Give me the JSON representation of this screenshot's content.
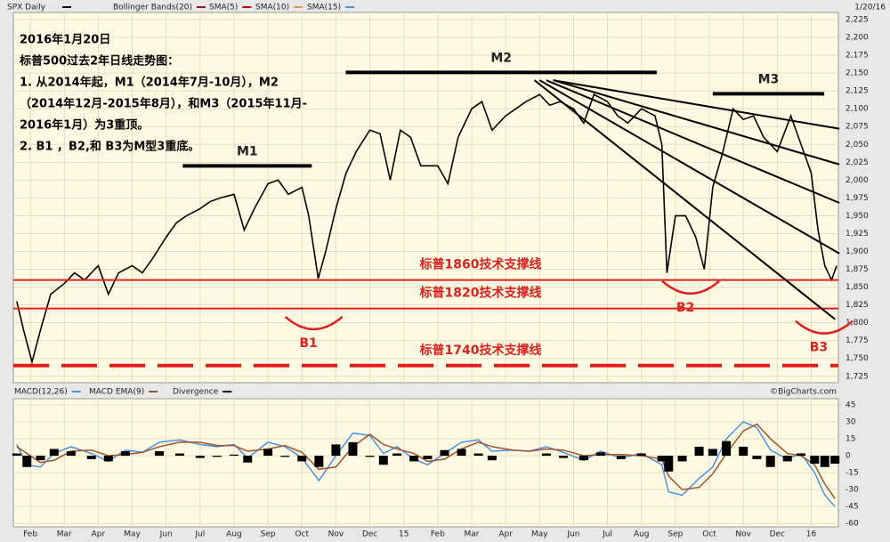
{
  "chart_data": [
    {
      "type": "line",
      "title": "SPX Daily",
      "date": "1/20/16",
      "legend": [
        {
          "name": "Bollinger Bands(20)",
          "color": "#8b1a1a"
        },
        {
          "name": "SMA(5)",
          "color": "#c00000"
        },
        {
          "name": "SMA(10)",
          "color": "#e0a040"
        },
        {
          "name": "SMA(15)",
          "color": "#4a90e2"
        }
      ],
      "x": [
        -0.4,
        -0.2,
        0.05,
        0.3,
        0.6,
        1.0,
        1.3,
        1.6,
        2.0,
        2.3,
        2.6,
        3.0,
        3.3,
        3.6,
        4.0,
        4.3,
        4.6,
        5.0,
        5.3,
        5.6,
        6.0,
        6.3,
        6.6,
        7.0,
        7.3,
        7.6,
        8.0,
        8.2,
        8.48,
        8.7,
        9.0,
        9.3,
        9.6,
        10.0,
        10.3,
        10.6,
        10.9,
        11.2,
        11.5,
        12.0,
        12.3,
        12.6,
        13.0,
        13.3,
        13.6,
        14.0,
        14.3,
        14.6,
        15.0,
        15.3,
        15.6,
        16.0,
        16.3,
        16.6,
        17.0,
        17.3,
        17.6,
        18.0,
        18.4,
        18.6,
        18.75,
        19.0,
        19.3,
        19.6,
        19.85,
        20.1,
        20.4,
        20.7,
        21.0,
        21.3,
        21.6,
        22.0,
        22.4,
        22.7,
        23.0,
        23.2,
        23.4,
        23.6,
        23.75
      ],
      "series": [
        {
          "name": "SPX Daily",
          "color": "#000000",
          "values": [
            1830,
            1790,
            1745,
            1790,
            1840,
            1855,
            1870,
            1860,
            1880,
            1840,
            1870,
            1880,
            1870,
            1890,
            1920,
            1940,
            1950,
            1960,
            1970,
            1975,
            1980,
            1930,
            1960,
            1995,
            2000,
            1980,
            1990,
            1950,
            1862,
            1900,
            1960,
            2010,
            2040,
            2070,
            2065,
            2000,
            2070,
            2060,
            2020,
            2020,
            1995,
            2060,
            2100,
            2110,
            2070,
            2090,
            2100,
            2110,
            2120,
            2105,
            2110,
            2100,
            2080,
            2120,
            2110,
            2090,
            2080,
            2100,
            2090,
            2050,
            1870,
            1950,
            1950,
            1920,
            1875,
            1990,
            2040,
            2100,
            2085,
            2090,
            2060,
            2040,
            2090,
            2050,
            2010,
            1930,
            1880,
            1860,
            1880
          ]
        }
      ],
      "xlim": [
        -0.5,
        23.8
      ],
      "ylim": [
        1716,
        2235
      ],
      "yticks": [
        {
          "value": 1725,
          "label": "1,725"
        },
        {
          "value": 1750,
          "label": "1,750"
        },
        {
          "value": 1775,
          "label": "1,775"
        },
        {
          "value": 1800,
          "label": "1,800"
        },
        {
          "value": 1825,
          "label": "1,825"
        },
        {
          "value": 1850,
          "label": "1,850"
        },
        {
          "value": 1875,
          "label": "1,875"
        },
        {
          "value": 1900,
          "label": "1,900"
        },
        {
          "value": 1925,
          "label": "1,925"
        },
        {
          "value": 1950,
          "label": "1,950"
        },
        {
          "value": 1975,
          "label": "1,975"
        },
        {
          "value": 2000,
          "label": "2,000"
        },
        {
          "value": 2025,
          "label": "2,025"
        },
        {
          "value": 2050,
          "label": "2,050"
        },
        {
          "value": 2075,
          "label": "2,075"
        },
        {
          "value": 2100,
          "label": "2,100"
        },
        {
          "value": 2125,
          "label": "2,125"
        },
        {
          "value": 2150,
          "label": "2,150"
        },
        {
          "value": 2175,
          "label": "2,175"
        },
        {
          "value": 2200,
          "label": "2,200"
        },
        {
          "value": 2225,
          "label": "2,225"
        }
      ],
      "grid": true,
      "support_lines": [
        {
          "value": 1860,
          "label": "标普1860技术支撑线",
          "style": "solid"
        },
        {
          "value": 1820,
          "label": "标普1820技术支撑线",
          "style": "solid"
        },
        {
          "value": 1740,
          "label": "标普1740技术支撑线",
          "style": "dashed"
        }
      ],
      "tops": [
        {
          "label": "M1",
          "value": 2020,
          "x": [
            4.49,
            8.29
          ]
        },
        {
          "label": "M2",
          "value": 2151,
          "x": [
            9.29,
            18.45
          ]
        },
        {
          "label": "M3",
          "value": 2121,
          "x": [
            20.1,
            23.38
          ]
        }
      ],
      "bottoms": [
        {
          "label": "B1",
          "x": 8.35,
          "value": 1791
        },
        {
          "label": "B2",
          "x": 19.45,
          "value": 1841
        },
        {
          "label": "B3",
          "x": 23.38,
          "value": 1785
        }
      ],
      "trendlines": [
        {
          "x": [
            15.4,
            23.83
          ],
          "values": [
            2140,
            2072
          ]
        },
        {
          "x": [
            15.4,
            23.83
          ],
          "values": [
            2140,
            2022
          ]
        },
        {
          "x": [
            15.2,
            23.83
          ],
          "values": [
            2140,
            1968
          ]
        },
        {
          "x": [
            15.0,
            23.83
          ],
          "values": [
            2140,
            1897
          ]
        },
        {
          "x": [
            14.85,
            23.7
          ],
          "values": [
            2140,
            1805
          ]
        }
      ],
      "note": [
        "2016年1月20日",
        "标普500过去2年日线走势图：",
        "1. 从2014年起，M1（2014年7月-10月），M2",
        "（2014年12月-2015年8月），和M3（2015年11月-",
        "2016年1月）为3重顶。",
        "2. B1 ，B2,和 B3为M型3重底。"
      ]
    },
    {
      "type": "line",
      "credit": "©BigCharts.com",
      "x": [
        -0.4,
        -0.1,
        0.3,
        0.7,
        1.2,
        1.8,
        2.3,
        2.8,
        3.3,
        3.8,
        4.4,
        5.0,
        5.5,
        6.0,
        6.4,
        7.0,
        7.5,
        8.0,
        8.5,
        9.0,
        9.5,
        10.0,
        10.4,
        10.8,
        11.3,
        11.7,
        12.2,
        12.7,
        13.2,
        13.6,
        14.2,
        14.7,
        15.2,
        15.7,
        16.3,
        16.8,
        17.4,
        18.0,
        18.6,
        18.8,
        19.2,
        19.7,
        20.1,
        20.5,
        21.0,
        21.4,
        21.8,
        22.3,
        22.7,
        23.1,
        23.4,
        23.7
      ],
      "series": [
        {
          "name": "MACD(12,26)",
          "color": "#4a90e2",
          "style": "line",
          "values": [
            10,
            -8,
            -10,
            2,
            8,
            2,
            -5,
            5,
            3,
            12,
            14,
            10,
            8,
            10,
            -2,
            12,
            8,
            -2,
            -22,
            0,
            20,
            18,
            2,
            8,
            -3,
            -8,
            2,
            12,
            14,
            4,
            5,
            4,
            8,
            3,
            -4,
            4,
            -2,
            2,
            -8,
            -32,
            -35,
            -20,
            -10,
            15,
            30,
            25,
            5,
            -3,
            2,
            -15,
            -35,
            -45
          ]
        },
        {
          "name": "MACD EMA(9)",
          "color": "#a0522d",
          "style": "line",
          "values": [
            8,
            2,
            -6,
            -4,
            4,
            5,
            0,
            1,
            3,
            8,
            12,
            12,
            9,
            9,
            4,
            6,
            9,
            3,
            -12,
            -10,
            8,
            19,
            10,
            6,
            2,
            -5,
            -3,
            6,
            12,
            8,
            5,
            4,
            6,
            5,
            0,
            1,
            1,
            0,
            -3,
            -18,
            -30,
            -28,
            -16,
            2,
            22,
            28,
            15,
            2,
            0,
            -8,
            -25,
            -38
          ]
        },
        {
          "name": "Divergence",
          "color": "#000000",
          "style": "bar",
          "values": [
            2,
            -10,
            -4,
            6,
            4,
            -3,
            -5,
            4,
            0,
            4,
            2,
            -2,
            -1,
            1,
            -6,
            6,
            -1,
            -5,
            -10,
            10,
            12,
            -1,
            -8,
            2,
            -5,
            -3,
            5,
            6,
            2,
            -4,
            0,
            0,
            2,
            -2,
            -4,
            3,
            -3,
            2,
            -5,
            -14,
            -5,
            8,
            6,
            13,
            8,
            -3,
            -10,
            -5,
            2,
            -7,
            -10,
            -7
          ]
        }
      ],
      "xlim": [
        -0.5,
        23.8
      ],
      "ylim": [
        -63,
        50.5
      ],
      "yticks": [
        45,
        30,
        15,
        0,
        -15,
        -30,
        -45,
        -60
      ],
      "xticks": [
        {
          "value": 0,
          "label": "Feb"
        },
        {
          "value": 1,
          "label": "Mar"
        },
        {
          "value": 2,
          "label": "Apr"
        },
        {
          "value": 3,
          "label": "May"
        },
        {
          "value": 4,
          "label": "Jun"
        },
        {
          "value": 5,
          "label": "Jul"
        },
        {
          "value": 6,
          "label": "Aug"
        },
        {
          "value": 7,
          "label": "Sep"
        },
        {
          "value": 8,
          "label": "Oct"
        },
        {
          "value": 9,
          "label": "Nov"
        },
        {
          "value": 10,
          "label": "Dec"
        },
        {
          "value": 11,
          "label": "15"
        },
        {
          "value": 12,
          "label": "Feb"
        },
        {
          "value": 13,
          "label": "Mar"
        },
        {
          "value": 14,
          "label": "Apr"
        },
        {
          "value": 15,
          "label": "May"
        },
        {
          "value": 16,
          "label": "Jun"
        },
        {
          "value": 17,
          "label": "Jul"
        },
        {
          "value": 18,
          "label": "Aug"
        },
        {
          "value": 19,
          "label": "Sep"
        },
        {
          "value": 20,
          "label": "Oct"
        },
        {
          "value": 21,
          "label": "Nov"
        },
        {
          "value": 22,
          "label": "Dec"
        },
        {
          "value": 23,
          "label": "16"
        }
      ],
      "grid": true
    }
  ]
}
